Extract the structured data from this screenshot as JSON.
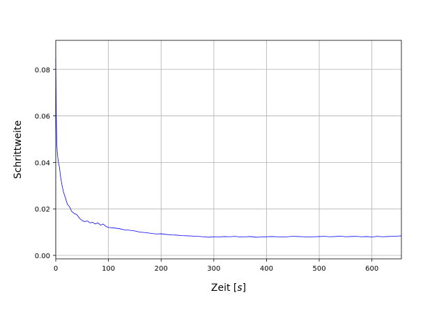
{
  "chart_data": {
    "type": "line",
    "title": "",
    "xlabel_main": "Zeit [",
    "xlabel_unit": "s",
    "xlabel_close": "]",
    "ylabel": "Schrittweite",
    "xlim": [
      0,
      656
    ],
    "ylim": [
      -0.0015,
      0.0925
    ],
    "grid": true,
    "x_ticks": [
      0,
      100,
      200,
      300,
      400,
      500,
      600
    ],
    "y_ticks": [
      0.0,
      0.02,
      0.04,
      0.06,
      0.08
    ],
    "x_tick_labels": [
      "0",
      "100",
      "200",
      "300",
      "400",
      "500",
      "600"
    ],
    "y_tick_labels": [
      "0.00",
      "0.02",
      "0.04",
      "0.06",
      "0.08"
    ],
    "series": [
      {
        "color": "#0000ff",
        "x": [
          0,
          1,
          2,
          3,
          4,
          5,
          7,
          9,
          12,
          15,
          18,
          22,
          26,
          30,
          35,
          40,
          45,
          50,
          55,
          60,
          65,
          70,
          75,
          80,
          85,
          90,
          95,
          100,
          110,
          120,
          130,
          140,
          150,
          160,
          170,
          180,
          190,
          200,
          210,
          220,
          230,
          240,
          250,
          260,
          270,
          280,
          290,
          300,
          310,
          320,
          330,
          340,
          350,
          360,
          370,
          380,
          390,
          400,
          410,
          420,
          430,
          440,
          450,
          460,
          470,
          480,
          490,
          500,
          510,
          520,
          530,
          540,
          550,
          560,
          570,
          580,
          590,
          600,
          610,
          620,
          630,
          640,
          650,
          656
        ],
        "y": [
          0.085,
          0.06,
          0.048,
          0.044,
          0.042,
          0.04,
          0.038,
          0.034,
          0.03,
          0.027,
          0.025,
          0.022,
          0.021,
          0.019,
          0.018,
          0.0175,
          0.016,
          0.015,
          0.0145,
          0.0148,
          0.014,
          0.0142,
          0.0135,
          0.014,
          0.013,
          0.0135,
          0.0125,
          0.012,
          0.0118,
          0.0115,
          0.011,
          0.0108,
          0.0105,
          0.01,
          0.0098,
          0.0095,
          0.0092,
          0.0093,
          0.009,
          0.0088,
          0.0087,
          0.0085,
          0.0084,
          0.0083,
          0.0082,
          0.008,
          0.0078,
          0.008,
          0.0079,
          0.0081,
          0.008,
          0.0082,
          0.0079,
          0.008,
          0.0081,
          0.0078,
          0.0079,
          0.008,
          0.0081,
          0.008,
          0.0079,
          0.008,
          0.0082,
          0.0081,
          0.008,
          0.0079,
          0.008,
          0.0081,
          0.0082,
          0.008,
          0.0081,
          0.0083,
          0.008,
          0.0081,
          0.0082,
          0.008,
          0.0081,
          0.0079,
          0.0082,
          0.008,
          0.0081,
          0.0082,
          0.0083,
          0.0084
        ]
      }
    ]
  }
}
